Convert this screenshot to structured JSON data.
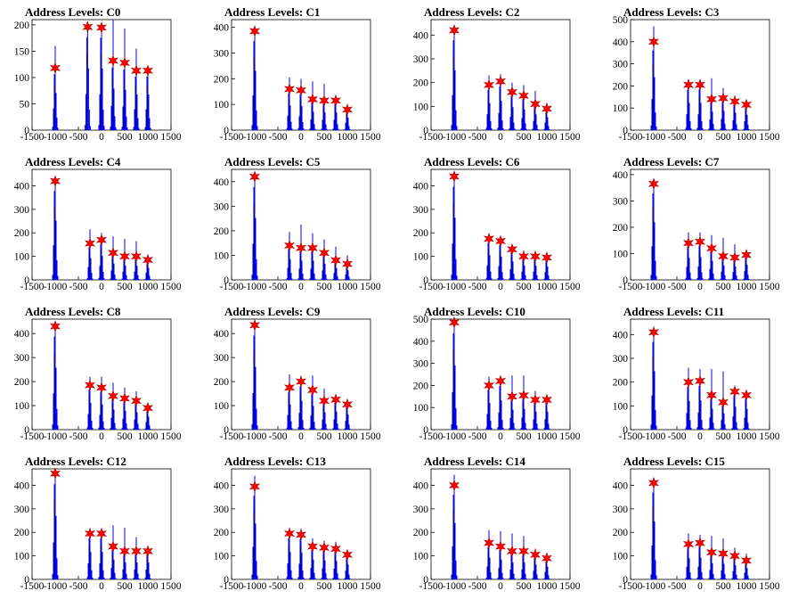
{
  "chart_data": [
    {
      "type": "bar",
      "title": "Address Levels: C0",
      "xlim": [
        -1500,
        1500
      ],
      "ylim": [
        0,
        210
      ],
      "yticks": [
        0,
        50,
        100,
        150,
        200
      ],
      "xticks": [
        -1500,
        -1000,
        -500,
        0,
        500,
        1000,
        1500
      ],
      "xticklabels": [
        "-1500",
        "-1000",
        "-500",
        "0",
        "500",
        "1000",
        "1500"
      ],
      "peaks": {
        "x": [
          -1000,
          -300,
          0,
          250,
          500,
          750,
          1000
        ],
        "values": [
          118,
          196,
          195,
          132,
          128,
          113,
          113
        ]
      },
      "histogram_max": [
        160,
        198,
        200,
        210,
        193,
        155,
        115
      ]
    },
    {
      "type": "bar",
      "title": "Address Levels: C1",
      "xlim": [
        -1500,
        1500
      ],
      "ylim": [
        0,
        430
      ],
      "yticks": [
        0,
        100,
        200,
        300,
        400
      ],
      "xticks": [
        -1500,
        -1000,
        -500,
        0,
        500,
        1000,
        1500
      ],
      "xticklabels": [
        "-1500",
        "-1000",
        "-500",
        "0",
        "500",
        "1000",
        "1500"
      ],
      "peaks": {
        "x": [
          -1000,
          -250,
          0,
          250,
          500,
          750,
          1000
        ],
        "values": [
          385,
          160,
          155,
          120,
          115,
          115,
          80
        ]
      },
      "histogram_max": [
        400,
        205,
        200,
        190,
        180,
        135,
        95
      ]
    },
    {
      "type": "bar",
      "title": "Address Levels: C2",
      "xlim": [
        -1500,
        1500
      ],
      "ylim": [
        0,
        465
      ],
      "yticks": [
        0,
        100,
        200,
        300,
        400
      ],
      "xticks": [
        -1500,
        -1000,
        -500,
        0,
        500,
        1000,
        1500
      ],
      "xticklabels": [
        "-1500",
        "-1000",
        "-500",
        "0",
        "500",
        "1000",
        "1500"
      ],
      "peaks": {
        "x": [
          -1000,
          -250,
          0,
          250,
          500,
          750,
          1000
        ],
        "values": [
          420,
          190,
          205,
          160,
          145,
          110,
          90
        ]
      },
      "histogram_max": [
        430,
        230,
        235,
        200,
        190,
        165,
        115
      ]
    },
    {
      "type": "bar",
      "title": "Address Levels: C3",
      "xlim": [
        -1500,
        1500
      ],
      "ylim": [
        0,
        500
      ],
      "yticks": [
        0,
        100,
        200,
        300,
        400,
        500
      ],
      "xticks": [
        -1500,
        -1000,
        -500,
        0,
        500,
        1000,
        1500
      ],
      "xticklabels": [
        "-1500",
        "-1000",
        "-500",
        "0",
        "500",
        "1000",
        "1500"
      ],
      "peaks": {
        "x": [
          -1000,
          -250,
          0,
          250,
          500,
          750,
          1000
        ],
        "values": [
          400,
          205,
          205,
          140,
          145,
          130,
          115
        ]
      },
      "histogram_max": [
        470,
        230,
        230,
        235,
        190,
        155,
        130
      ]
    },
    {
      "type": "bar",
      "title": "Address Levels: C4",
      "xlim": [
        -1500,
        1500
      ],
      "ylim": [
        0,
        470
      ],
      "yticks": [
        0,
        100,
        200,
        300,
        400
      ],
      "xticks": [
        -1500,
        -1000,
        -500,
        0,
        500,
        1000,
        1500
      ],
      "xticklabels": [
        "-1500",
        "-1000",
        "-500",
        "0",
        "500",
        "1000",
        "1500"
      ],
      "peaks": {
        "x": [
          -1000,
          -250,
          0,
          250,
          500,
          750,
          1000
        ],
        "values": [
          420,
          155,
          170,
          115,
          100,
          100,
          85
        ]
      },
      "histogram_max": [
        430,
        215,
        200,
        185,
        175,
        165,
        100
      ]
    },
    {
      "type": "bar",
      "title": "Address Levels: C5",
      "xlim": [
        -1500,
        1500
      ],
      "ylim": [
        0,
        450
      ],
      "yticks": [
        0,
        100,
        200,
        300,
        400
      ],
      "xticks": [
        -1500,
        -1000,
        -500,
        0,
        500,
        1000,
        1500
      ],
      "xticklabels": [
        "-1500",
        "-1000",
        "-500",
        "0",
        "500",
        "1000",
        "1500"
      ],
      "peaks": {
        "x": [
          -1000,
          -250,
          0,
          250,
          500,
          750,
          1000
        ],
        "values": [
          420,
          140,
          130,
          130,
          110,
          80,
          65
        ]
      },
      "histogram_max": [
        430,
        195,
        225,
        190,
        165,
        135,
        100
      ]
    },
    {
      "type": "bar",
      "title": "Address Levels: C6",
      "xlim": [
        -1500,
        1500
      ],
      "ylim": [
        0,
        470
      ],
      "yticks": [
        0,
        100,
        200,
        300,
        400
      ],
      "xticks": [
        -1500,
        -1000,
        -500,
        0,
        500,
        1000,
        1500
      ],
      "xticklabels": [
        "-1500",
        "-1000",
        "-500",
        "0",
        "500",
        "1000",
        "1500"
      ],
      "peaks": {
        "x": [
          -1000,
          -250,
          0,
          250,
          500,
          750,
          1000
        ],
        "values": [
          440,
          175,
          165,
          130,
          100,
          100,
          95
        ]
      },
      "histogram_max": [
        450,
        185,
        170,
        145,
        125,
        120,
        115
      ]
    },
    {
      "type": "bar",
      "title": "Address Levels: C7",
      "xlim": [
        -1500,
        1500
      ],
      "ylim": [
        0,
        420
      ],
      "yticks": [
        0,
        100,
        200,
        300,
        400
      ],
      "xticks": [
        -1500,
        -1000,
        -500,
        0,
        500,
        1000,
        1500
      ],
      "xticklabels": [
        "-1500",
        "-1000",
        "-500",
        "0",
        "500",
        "1000",
        "1500"
      ],
      "peaks": {
        "x": [
          -1000,
          -250,
          0,
          250,
          500,
          750,
          1000
        ],
        "values": [
          365,
          140,
          145,
          120,
          90,
          85,
          95
        ]
      },
      "histogram_max": [
        380,
        180,
        180,
        170,
        160,
        135,
        110
      ]
    },
    {
      "type": "bar",
      "title": "Address Levels: C8",
      "xlim": [
        -1500,
        1500
      ],
      "ylim": [
        0,
        460
      ],
      "yticks": [
        0,
        100,
        200,
        300,
        400
      ],
      "xticks": [
        -1500,
        -1000,
        -500,
        0,
        500,
        1000,
        1500
      ],
      "xticklabels": [
        "-1500",
        "-1000",
        "-500",
        "0",
        "500",
        "1000",
        "1500"
      ],
      "peaks": {
        "x": [
          -1000,
          -250,
          0,
          250,
          500,
          750,
          1000
        ],
        "values": [
          430,
          185,
          175,
          140,
          130,
          120,
          90
        ]
      },
      "histogram_max": [
        440,
        220,
        220,
        195,
        175,
        160,
        110
      ]
    },
    {
      "type": "bar",
      "title": "Address Levels: C9",
      "xlim": [
        -1500,
        1500
      ],
      "ylim": [
        0,
        460
      ],
      "yticks": [
        0,
        100,
        200,
        300,
        400
      ],
      "xticks": [
        -1500,
        -1000,
        -500,
        0,
        500,
        1000,
        1500
      ],
      "xticklabels": [
        "-1500",
        "-1000",
        "-500",
        "0",
        "500",
        "1000",
        "1500"
      ],
      "peaks": {
        "x": [
          -1000,
          -250,
          0,
          250,
          500,
          750,
          1000
        ],
        "values": [
          435,
          175,
          200,
          165,
          120,
          125,
          105
        ]
      },
      "histogram_max": [
        445,
        230,
        225,
        225,
        170,
        145,
        120
      ]
    },
    {
      "type": "bar",
      "title": "Address Levels: C10",
      "xlim": [
        -1500,
        1500
      ],
      "ylim": [
        0,
        500
      ],
      "yticks": [
        0,
        100,
        200,
        300,
        400,
        500
      ],
      "xticks": [
        -1500,
        -1000,
        -500,
        0,
        500,
        1000,
        1500
      ],
      "xticklabels": [
        "-1500",
        "-1000",
        "-500",
        "0",
        "500",
        "1000",
        "1500"
      ],
      "peaks": {
        "x": [
          -1000,
          -250,
          0,
          250,
          500,
          750,
          1000
        ],
        "values": [
          485,
          200,
          220,
          150,
          155,
          135,
          135
        ]
      },
      "histogram_max": [
        495,
        240,
        230,
        245,
        245,
        175,
        150
      ]
    },
    {
      "type": "bar",
      "title": "Address Levels: C11",
      "xlim": [
        -1500,
        1500
      ],
      "ylim": [
        0,
        465
      ],
      "yticks": [
        0,
        100,
        200,
        300,
        400
      ],
      "xticks": [
        -1500,
        -1000,
        -500,
        0,
        500,
        1000,
        1500
      ],
      "xticklabels": [
        "-1500",
        "-1000",
        "-500",
        "0",
        "500",
        "1000",
        "1500"
      ],
      "peaks": {
        "x": [
          -1000,
          -250,
          0,
          250,
          500,
          750,
          1000
        ],
        "values": [
          410,
          200,
          205,
          145,
          115,
          160,
          145
        ]
      },
      "histogram_max": [
        420,
        260,
        255,
        255,
        245,
        185,
        165
      ]
    },
    {
      "type": "bar",
      "title": "Address Levels: C12",
      "xlim": [
        -1500,
        1500
      ],
      "ylim": [
        0,
        470
      ],
      "yticks": [
        0,
        100,
        200,
        300,
        400
      ],
      "xticks": [
        -1500,
        -1000,
        -500,
        0,
        500,
        1000,
        1500
      ],
      "xticklabels": [
        "-1500",
        "-1000",
        "-500",
        "0",
        "500",
        "1000",
        "1500"
      ],
      "peaks": {
        "x": [
          -1000,
          -250,
          0,
          250,
          500,
          750,
          1000
        ],
        "values": [
          450,
          195,
          195,
          140,
          120,
          120,
          120
        ]
      },
      "histogram_max": [
        455,
        205,
        210,
        230,
        220,
        180,
        130
      ]
    },
    {
      "type": "bar",
      "title": "Address Levels: C13",
      "xlim": [
        -1500,
        1500
      ],
      "ylim": [
        0,
        470
      ],
      "yticks": [
        0,
        100,
        200,
        300,
        400
      ],
      "xticks": [
        -1500,
        -1000,
        -500,
        0,
        500,
        1000,
        1500
      ],
      "xticklabels": [
        "-1500",
        "-1000",
        "-500",
        "0",
        "500",
        "1000",
        "1500"
      ],
      "peaks": {
        "x": [
          -1000,
          -250,
          0,
          250,
          500,
          750,
          1000
        ],
        "values": [
          395,
          195,
          190,
          140,
          135,
          130,
          105
        ]
      },
      "histogram_max": [
        440,
        220,
        215,
        175,
        165,
        160,
        125
      ]
    },
    {
      "type": "bar",
      "title": "Address Levels: C14",
      "xlim": [
        -1500,
        1500
      ],
      "ylim": [
        0,
        470
      ],
      "yticks": [
        0,
        100,
        200,
        300,
        400
      ],
      "xticks": [
        -1500,
        -1000,
        -500,
        0,
        500,
        1000,
        1500
      ],
      "xticklabels": [
        "-1500",
        "-1000",
        "-500",
        "0",
        "500",
        "1000",
        "1500"
      ],
      "peaks": {
        "x": [
          -1000,
          -250,
          0,
          250,
          500,
          750,
          1000
        ],
        "values": [
          400,
          155,
          140,
          120,
          120,
          105,
          90
        ]
      },
      "histogram_max": [
        445,
        210,
        205,
        195,
        185,
        130,
        105
      ]
    },
    {
      "type": "bar",
      "title": "Address Levels: C15",
      "xlim": [
        -1500,
        1500
      ],
      "ylim": [
        0,
        470
      ],
      "yticks": [
        0,
        100,
        200,
        300,
        400
      ],
      "xticks": [
        -1500,
        -1000,
        -500,
        0,
        500,
        1000,
        1500
      ],
      "xticklabels": [
        "-1500",
        "-1000",
        "-500",
        "0",
        "500",
        "1000",
        "1500"
      ],
      "peaks": {
        "x": [
          -1000,
          -250,
          0,
          250,
          500,
          750,
          1000
        ],
        "values": [
          410,
          150,
          155,
          115,
          110,
          100,
          80
        ]
      },
      "histogram_max": [
        420,
        195,
        190,
        185,
        175,
        135,
        110
      ]
    }
  ],
  "colors": {
    "histogram": "#0000ff",
    "marker_fill": "#ff0000",
    "marker_stroke": "#b00000",
    "axis": "#000000"
  },
  "marker_icon": "red-star-marker"
}
